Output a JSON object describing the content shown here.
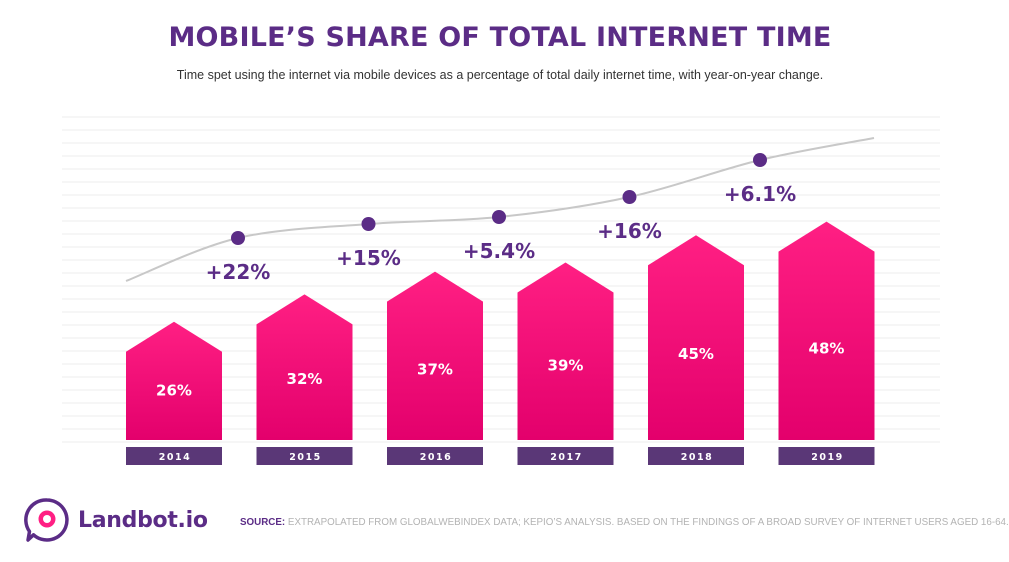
{
  "chart_data": {
    "type": "bar",
    "title": "MOBILE’S SHARE OF TOTAL INTERNET TIME",
    "subtitle": "Time spet using the internet via mobile devices as a percentage of total daily internet time, with year-on-year change.",
    "categories": [
      "2014",
      "2015",
      "2016",
      "2017",
      "2018",
      "2019"
    ],
    "values": [
      26,
      32,
      37,
      39,
      45,
      48
    ],
    "value_labels": [
      "26%",
      "32%",
      "37%",
      "39%",
      "45%",
      "48%"
    ],
    "yoy_change_labels": [
      "+22%",
      "+15%",
      "+5.4%",
      "+16%",
      "+6.1%"
    ],
    "xlabel": "",
    "ylabel": "",
    "unit": "%",
    "grid": true
  },
  "colors": {
    "bar_top": "#ff1f83",
    "bar_bottom": "#e3006c",
    "year_band": "#5a3777",
    "accent": "#5b2c86",
    "curve": "#c8c8c8",
    "grid": "#ececec"
  },
  "branding": {
    "logo_text": "Landbot.io",
    "logo_icon": "chat-bubble-icon"
  },
  "footer": {
    "source_label": "SOURCE:",
    "source_text": " EXTRAPOLATED FROM GLOBALWEBINDEX DATA; KEPIO’S ANALYSIS. BASED ON THE FINDINGS OF A BROAD SURVEY OF INTERNET USERS AGED 16-64."
  }
}
